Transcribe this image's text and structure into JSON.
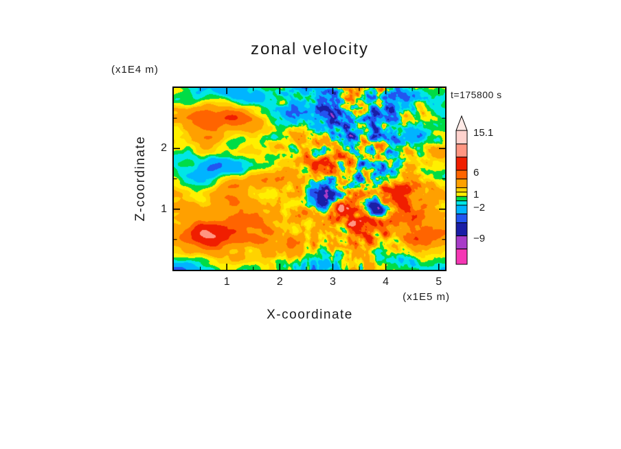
{
  "chart_data": {
    "type": "heatmap",
    "title": "zonal velocity",
    "time_annotation": "t=175800 s",
    "xlabel": "X-coordinate",
    "x_unit_label": "(x1E5 m)",
    "x_range": [
      0,
      5.12
    ],
    "x_tick_values": [
      1,
      2,
      3,
      4,
      5
    ],
    "x_tick_labels": [
      "1",
      "2",
      "3",
      "4",
      "5"
    ],
    "x_minor_tick_step": 0.5,
    "ylabel": "Z-coordinate",
    "y_unit_label": "(x1E4 m)",
    "y_range": [
      0,
      3.0
    ],
    "y_tick_values": [
      1,
      2
    ],
    "y_tick_labels": [
      "1",
      "2"
    ],
    "y_minor_tick_step": 0.5,
    "grid": false,
    "frame_color": "#000000",
    "text_color": "#1a1a1a",
    "value_min": -15.5,
    "value_max": 16.2,
    "contour_levels": [
      -12,
      -9,
      -6,
      -4,
      -2,
      -1,
      0,
      1,
      2,
      4,
      6,
      9,
      12,
      15.1
    ],
    "band_colors_low_to_high": [
      "#f537b4",
      "#a83cc8",
      "#1a1ea6",
      "#2355f0",
      "#00b4ff",
      "#00e6e6",
      "#00dc46",
      "#fff000",
      "#ffd200",
      "#ffa000",
      "#ff6400",
      "#f01e00",
      "#ff9682",
      "#ffd2cd",
      "#ffeae6"
    ],
    "colorbar": {
      "position": "right",
      "overflow_arrow": "top",
      "tick_labels": [
        {
          "value": 15.1,
          "text": "15.1"
        },
        {
          "value": 6,
          "text": "6"
        },
        {
          "value": 1,
          "text": "1"
        },
        {
          "value": -2,
          "text": "−2"
        },
        {
          "value": -9,
          "text": "−9"
        }
      ]
    },
    "field_representation": "procedural approximation of the turbulent 2-D field shown (exact gridded values are not recoverable from the image)"
  }
}
